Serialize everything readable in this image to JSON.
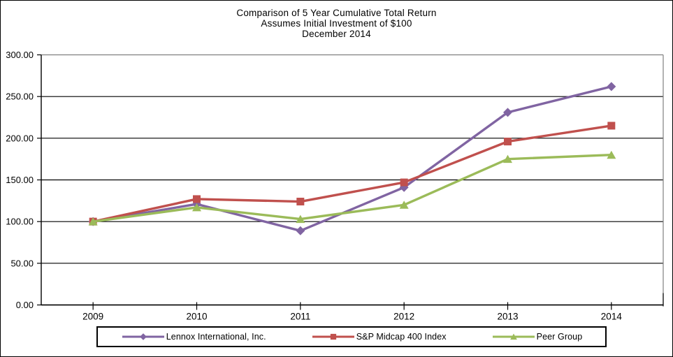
{
  "title": {
    "line1": "Comparison of 5 Year Cumulative Total Return",
    "line2": "Assumes Initial Investment of $100",
    "line3": "December 2014"
  },
  "chart_data": {
    "type": "line",
    "categories": [
      "2009",
      "2010",
      "2011",
      "2012",
      "2013",
      "2014"
    ],
    "series": [
      {
        "name": "Lennox International, Inc.",
        "color": "#8064A2",
        "marker": "diamond",
        "values": [
          100,
          121,
          89,
          141,
          231,
          262
        ]
      },
      {
        "name": "S&P Midcap 400 Index",
        "color": "#C0504D",
        "marker": "square",
        "values": [
          100,
          127,
          124,
          147,
          196,
          215
        ]
      },
      {
        "name": "Peer Group",
        "color": "#9BBB59",
        "marker": "triangle",
        "values": [
          100,
          117,
          103,
          120,
          175,
          180
        ]
      }
    ],
    "ylim": [
      0,
      300
    ],
    "y_ticks": [
      0,
      50,
      100,
      150,
      200,
      250,
      300
    ],
    "y_tick_labels": [
      "0.00",
      "50.00",
      "100.00",
      "150.00",
      "200.00",
      "250.00",
      "300.00"
    ],
    "grid": true,
    "legend_position": "bottom",
    "axis_color": "#000000",
    "gridline_color": "#000000",
    "plot_border_color": "#808080",
    "label_color": "#000000"
  }
}
